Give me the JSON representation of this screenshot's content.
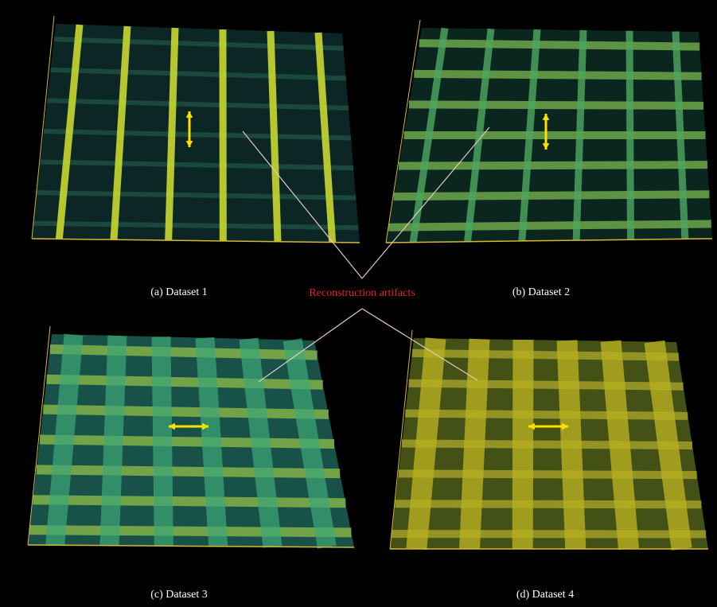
{
  "panels": [
    {
      "caption": "(a) Dataset 1"
    },
    {
      "caption": "(b) Dataset 2"
    },
    {
      "caption": "(c) Dataset 3"
    },
    {
      "caption": "(d) Dataset 4"
    }
  ],
  "annotation": "Reconstruction artifacts"
}
